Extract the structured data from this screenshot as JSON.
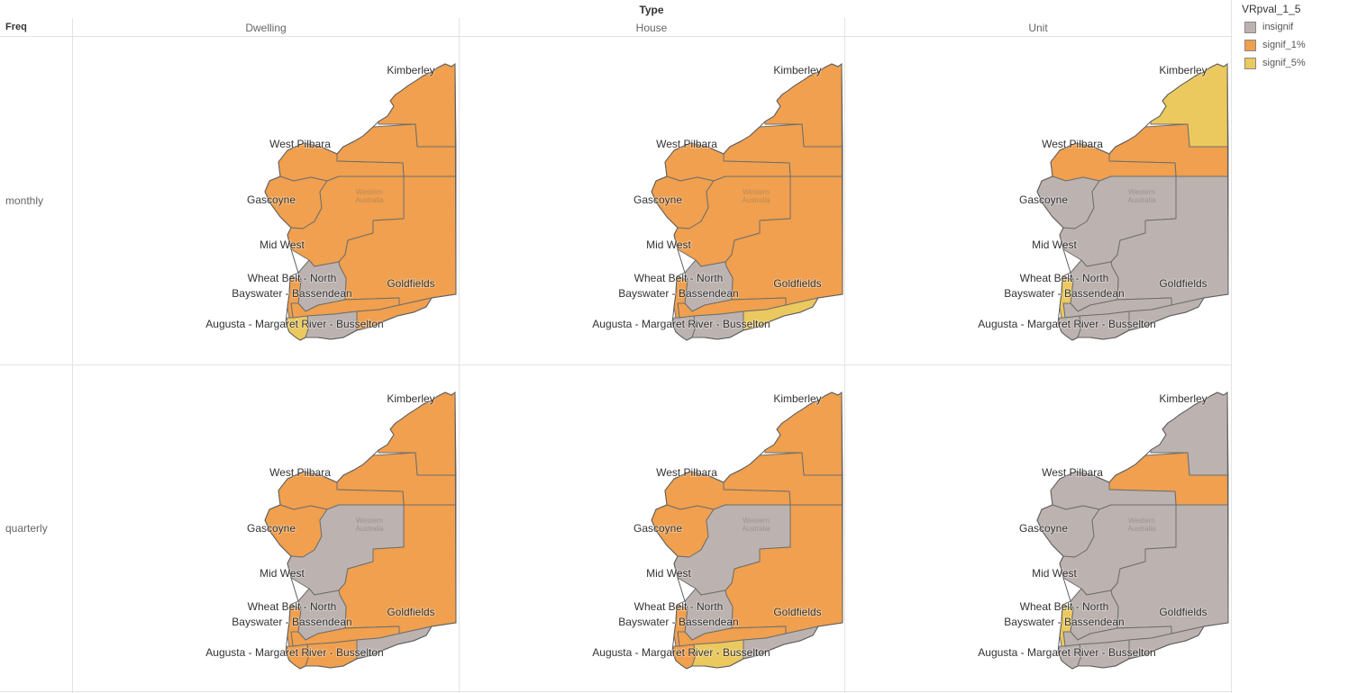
{
  "header": {
    "column_field": "Type",
    "row_field": "Freq"
  },
  "columns": [
    "Dwelling",
    "House",
    "Unit"
  ],
  "rows": [
    "monthly",
    "quarterly"
  ],
  "legend": {
    "title": "VRpval_1_5",
    "items": [
      {
        "key": "insignif",
        "label": "insignif",
        "color": "#bcb3b0"
      },
      {
        "key": "signif_1",
        "label": "signif_1%",
        "color": "#f0a04e"
      },
      {
        "key": "signif_5",
        "label": "signif_5%",
        "color": "#ecc95e"
      }
    ]
  },
  "map": {
    "state_label": [
      "Western",
      "Australia"
    ],
    "regions": [
      {
        "id": "kimberley",
        "label": "Kimberley"
      },
      {
        "id": "west_pilbara",
        "label": "West Pilbara"
      },
      {
        "id": "gascoyne",
        "label": "Gascoyne"
      },
      {
        "id": "mid_west",
        "label": "Mid West"
      },
      {
        "id": "wheat_belt_north",
        "label": "Wheat Belt - North"
      },
      {
        "id": "bayswater_bassendean",
        "label": "Bayswater - Bassendean"
      },
      {
        "id": "augusta_busselton",
        "label": "Augusta - Margaret River - Busselton"
      },
      {
        "id": "goldfields",
        "label": "Goldfields"
      }
    ]
  },
  "panels": [
    {
      "freq": "monthly",
      "type": "Dwelling",
      "values": {
        "kimberley": "signif_1",
        "east_pilbara": "signif_1",
        "west_pilbara": "signif_1",
        "gascoyne": "signif_1",
        "mid_west": "signif_1",
        "goldfields": "signif_1",
        "wheat_belt_north": "insignif",
        "wheat_belt_south": "signif_1",
        "perth": "signif_1",
        "augusta_busselton": "signif_5",
        "south_west": "insignif",
        "esperance": "signif_1"
      }
    },
    {
      "freq": "monthly",
      "type": "House",
      "values": {
        "kimberley": "signif_1",
        "east_pilbara": "signif_1",
        "west_pilbara": "signif_1",
        "gascoyne": "signif_1",
        "mid_west": "signif_1",
        "goldfields": "signif_1",
        "wheat_belt_north": "insignif",
        "wheat_belt_south": "signif_1",
        "perth": "signif_1",
        "augusta_busselton": "insignif",
        "south_west": "insignif",
        "esperance": "signif_5"
      }
    },
    {
      "freq": "monthly",
      "type": "Unit",
      "values": {
        "kimberley": "signif_5",
        "east_pilbara": "signif_1",
        "west_pilbara": "signif_1",
        "gascoyne": "insignif",
        "mid_west": "insignif",
        "goldfields": "insignif",
        "wheat_belt_north": "insignif",
        "wheat_belt_south": "insignif",
        "perth": "signif_5",
        "augusta_busselton": "insignif",
        "south_west": "insignif",
        "esperance": "insignif"
      }
    },
    {
      "freq": "quarterly",
      "type": "Dwelling",
      "values": {
        "kimberley": "signif_1",
        "east_pilbara": "signif_1",
        "west_pilbara": "signif_1",
        "gascoyne": "signif_1",
        "mid_west": "insignif",
        "goldfields": "signif_1",
        "wheat_belt_north": "insignif",
        "wheat_belt_south": "signif_1",
        "perth": "signif_1",
        "augusta_busselton": "signif_1",
        "south_west": "signif_1",
        "esperance": "insignif"
      }
    },
    {
      "freq": "quarterly",
      "type": "House",
      "values": {
        "kimberley": "signif_1",
        "east_pilbara": "signif_1",
        "west_pilbara": "signif_1",
        "gascoyne": "signif_1",
        "mid_west": "insignif",
        "goldfields": "signif_1",
        "wheat_belt_north": "insignif",
        "wheat_belt_south": "signif_1",
        "perth": "signif_1",
        "augusta_busselton": "signif_1",
        "south_west": "signif_5",
        "esperance": "insignif"
      }
    },
    {
      "freq": "quarterly",
      "type": "Unit",
      "values": {
        "kimberley": "insignif",
        "east_pilbara": "signif_1",
        "west_pilbara": "insignif",
        "gascoyne": "insignif",
        "mid_west": "insignif",
        "goldfields": "insignif",
        "wheat_belt_north": "insignif",
        "wheat_belt_south": "insignif",
        "perth": "signif_5",
        "augusta_busselton": "insignif",
        "south_west": "insignif",
        "esperance": "insignif"
      }
    }
  ]
}
